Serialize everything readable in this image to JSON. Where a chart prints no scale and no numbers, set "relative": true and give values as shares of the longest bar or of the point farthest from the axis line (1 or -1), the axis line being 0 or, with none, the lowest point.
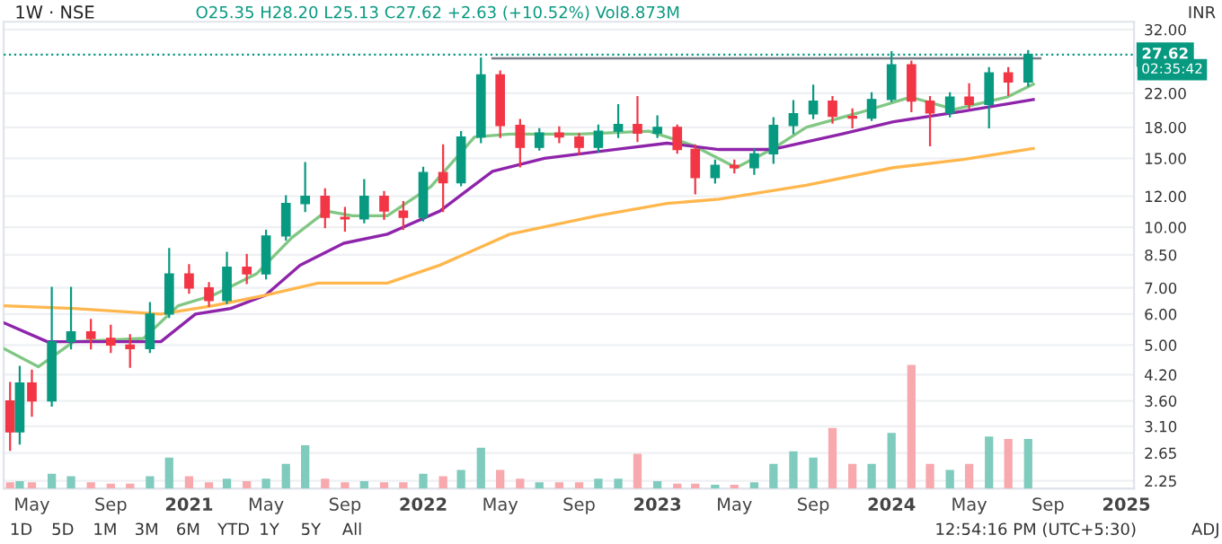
{
  "chart_data": [
    {
      "type": "candlestick",
      "title": "1W · NSE",
      "annotations": [
        "O25.35 H28.20 L25.13 C27.62 +2.63 (+10.52%) Vol8.873M",
        "INR",
        "02:35:42",
        "1D",
        "5D",
        "1M",
        "3M",
        "6M",
        "YTD",
        "1Y",
        "5Y",
        "All",
        "12:54:16 PM (UTC+5:30)",
        "ADJ"
      ],
      "x": [
        "2020-03-28",
        "2020-04-12",
        "2020-05",
        "2020-06",
        "2020-07",
        "2020-08",
        "2020-09",
        "2020-10",
        "2020-11",
        "2020-12",
        "2021-01",
        "2021-02",
        "2021-03",
        "2021-04",
        "2021-05",
        "2021-06",
        "2021-07",
        "2021-08",
        "2021-09",
        "2021-10",
        "2021-11",
        "2021-12",
        "2022-01",
        "2022-02",
        "2022-03",
        "2022-04",
        "2022-05",
        "2022-06",
        "2022-07",
        "2022-08",
        "2022-09",
        "2022-10",
        "2022-11",
        "2022-12",
        "2023-01",
        "2023-02",
        "2023-03",
        "2023-04",
        "2023-05",
        "2023-06",
        "2023-07",
        "2023-08",
        "2023-09",
        "2023-10",
        "2023-11",
        "2023-12",
        "2024-01",
        "2024-02",
        "2024-03",
        "2024-04",
        "2024-05",
        "2024-06",
        "2024-07",
        "2024-08"
      ],
      "ohlc": [
        [
          3.6,
          4.0,
          2.7,
          3.0
        ],
        [
          3.0,
          4.4,
          2.8,
          4.0
        ],
        [
          4.0,
          4.3,
          3.3,
          3.6
        ],
        [
          3.6,
          7.0,
          3.5,
          5.1
        ],
        [
          5.1,
          7.0,
          4.9,
          5.4
        ],
        [
          5.4,
          5.8,
          4.9,
          5.2
        ],
        [
          5.2,
          5.6,
          4.8,
          5.0
        ],
        [
          5.0,
          5.3,
          4.4,
          4.9
        ],
        [
          4.9,
          6.4,
          4.8,
          6.0
        ],
        [
          6.0,
          8.8,
          5.9,
          7.6
        ],
        [
          7.6,
          8.0,
          6.8,
          7.0
        ],
        [
          7.0,
          7.2,
          6.3,
          6.5
        ],
        [
          6.5,
          8.6,
          6.4,
          7.9
        ],
        [
          7.9,
          8.5,
          7.2,
          7.6
        ],
        [
          7.6,
          9.8,
          7.4,
          9.5
        ],
        [
          9.5,
          12.0,
          9.3,
          11.5
        ],
        [
          11.5,
          14.6,
          11.0,
          12.0
        ],
        [
          12.0,
          12.5,
          10.0,
          10.6
        ],
        [
          10.6,
          11.2,
          9.8,
          10.5
        ],
        [
          10.5,
          13.2,
          10.3,
          12.0
        ],
        [
          12.0,
          12.3,
          10.5,
          11.0
        ],
        [
          11.0,
          11.6,
          9.9,
          10.6
        ],
        [
          10.6,
          14.2,
          10.4,
          13.8
        ],
        [
          13.8,
          16.2,
          11.0,
          13.0
        ],
        [
          13.0,
          17.5,
          12.8,
          17.0
        ],
        [
          17.0,
          27.0,
          16.5,
          24.5
        ],
        [
          24.5,
          25.0,
          17.0,
          18.2
        ],
        [
          18.2,
          18.8,
          14.3,
          16.0
        ],
        [
          16.0,
          17.8,
          15.8,
          17.4
        ],
        [
          17.4,
          18.0,
          16.5,
          17.0
        ],
        [
          17.0,
          17.3,
          15.4,
          16.0
        ],
        [
          16.0,
          18.2,
          15.6,
          17.6
        ],
        [
          17.6,
          20.5,
          17.0,
          18.3
        ],
        [
          18.3,
          21.5,
          16.6,
          17.4
        ],
        [
          17.4,
          19.2,
          17.0,
          18.0
        ],
        [
          18.0,
          18.2,
          15.5,
          15.8
        ],
        [
          15.8,
          16.2,
          12.2,
          13.4
        ],
        [
          13.4,
          14.8,
          13.0,
          14.4
        ],
        [
          14.4,
          14.8,
          13.8,
          14.2
        ],
        [
          14.2,
          15.8,
          13.7,
          15.4
        ],
        [
          15.4,
          19.0,
          14.6,
          18.2
        ],
        [
          18.2,
          21.0,
          17.4,
          19.5
        ],
        [
          19.5,
          23.0,
          19.0,
          21.0
        ],
        [
          21.0,
          21.5,
          18.5,
          19.2
        ],
        [
          19.2,
          20.0,
          18.0,
          19.0
        ],
        [
          19.0,
          22.0,
          18.8,
          21.2
        ],
        [
          21.2,
          28.0,
          21.0,
          26.0
        ],
        [
          26.0,
          26.5,
          19.8,
          21.0
        ],
        [
          21.0,
          21.5,
          16.2,
          19.6
        ],
        [
          19.6,
          22.0,
          19.2,
          21.5
        ],
        [
          21.5,
          23.2,
          20.2,
          20.6
        ],
        [
          20.6,
          25.5,
          18.0,
          24.8
        ],
        [
          24.8,
          25.5,
          21.8,
          23.5
        ],
        [
          23.5,
          28.2,
          23.0,
          27.62
        ]
      ],
      "colors": [
        "#f23645",
        "#089981",
        "#f23645",
        "#089981",
        "#089981",
        "#f23645",
        "#f23645",
        "#f23645",
        "#089981",
        "#089981",
        "#f23645",
        "#f23645",
        "#089981",
        "#f23645",
        "#089981",
        "#089981",
        "#089981",
        "#f23645",
        "#f23645",
        "#089981",
        "#f23645",
        "#f23645",
        "#089981",
        "#f23645",
        "#089981",
        "#089981",
        "#f23645",
        "#f23645",
        "#089981",
        "#f23645",
        "#f23645",
        "#089981",
        "#089981",
        "#f23645",
        "#089981",
        "#f23645",
        "#f23645",
        "#089981",
        "#f23645",
        "#089981",
        "#089981",
        "#089981",
        "#089981",
        "#f23645",
        "#f23645",
        "#089981",
        "#089981",
        "#f23645",
        "#f23645",
        "#089981",
        "#f23645",
        "#089981",
        "#f23645",
        "#089981"
      ],
      "series": [
        {
          "type": "line",
          "color": "#81c784",
          "x": [
            "2020-03-18",
            "2020-05-11",
            "2020-07-05",
            "2020-10-22",
            "2020-12-15",
            "2021-02-07",
            "2021-04-16",
            "2021-06-10",
            "2021-08-03",
            "2021-09-13",
            "2021-11-06",
            "2022-01-13",
            "2022-03-22",
            "2022-05-16",
            "2022-09-02",
            "2022-12-19",
            "2023-02-25",
            "2023-05-04",
            "2023-06-28",
            "2023-08-21",
            "2023-11-11",
            "2024-01-31",
            "2024-04-08",
            "2024-06-29",
            "2024-08-09"
          ],
          "values": [
            4.9,
            4.4,
            5.1,
            5.2,
            6.3,
            6.7,
            7.6,
            9.4,
            11.0,
            10.7,
            10.7,
            12.7,
            17.0,
            17.3,
            17.3,
            17.6,
            16.2,
            14.2,
            15.8,
            18.0,
            19.6,
            21.5,
            20.0,
            21.5,
            23.2
          ]
        },
        {
          "type": "line",
          "color": "#8e24aa",
          "x": [
            "2020-03-18",
            "2020-05-25",
            "2020-07-05",
            "2020-11-18",
            "2021-01-11",
            "2021-03-07",
            "2021-04-30",
            "2021-06-23",
            "2021-08-30",
            "2021-11-06",
            "2022-01-27",
            "2022-04-19",
            "2022-07-09",
            "2022-10-26",
            "2023-01-16",
            "2023-04-07",
            "2023-06-28",
            "2023-10-15",
            "2024-01-04",
            "2024-04-22",
            "2024-08-09"
          ],
          "values": [
            5.7,
            5.1,
            5.1,
            5.1,
            6.0,
            6.2,
            6.7,
            8.0,
            9.1,
            9.6,
            11.0,
            13.9,
            15.0,
            15.8,
            16.4,
            15.8,
            15.8,
            17.3,
            18.6,
            19.8,
            21.2
          ]
        },
        {
          "type": "line",
          "color": "#ffb74d",
          "x": [
            "2020-03-18",
            "2020-07-05",
            "2020-11-18",
            "2021-02-07",
            "2021-04-30",
            "2021-07-21",
            "2021-11-06",
            "2022-01-27",
            "2022-05-16",
            "2022-09-29",
            "2023-01-16",
            "2023-04-07",
            "2023-08-21",
            "2024-01-04",
            "2024-04-22",
            "2024-08-09"
          ],
          "values": [
            6.3,
            6.2,
            6.0,
            6.3,
            6.7,
            7.2,
            7.2,
            8.0,
            9.6,
            10.7,
            11.5,
            11.8,
            12.8,
            14.2,
            14.9,
            15.9
          ]
        },
        {
          "type": "line",
          "color": "#787b86",
          "x": [
            "2022-04-19",
            "2024-08-20"
          ],
          "values": [
            27.0,
            27.0
          ]
        }
      ],
      "ref_lines": [
        {
          "axis": "y",
          "value": 27.62,
          "label": "27.62",
          "color": "#089981",
          "line_style": "dotted"
        }
      ],
      "log": "y",
      "xlim": [
        "2020-03-18",
        "2025-01-13"
      ],
      "ylim": [
        2.15,
        33.5
      ],
      "yticks": [
        2.25,
        2.65,
        {
          "value": 3.1,
          "label": "3.10"
        },
        {
          "value": 3.6,
          "label": "3.60"
        },
        {
          "value": 4.2,
          "label": "4.20"
        },
        {
          "value": 5,
          "label": "5.00"
        },
        {
          "value": 6,
          "label": "6.00"
        },
        {
          "value": 7,
          "label": "7.00"
        },
        {
          "value": 8.5,
          "label": "8.50"
        },
        {
          "value": 10,
          "label": "10.00"
        },
        {
          "value": 12,
          "label": "12.00"
        },
        {
          "value": 15,
          "label": "15.00"
        },
        {
          "value": 18,
          "label": "18.00"
        },
        {
          "value": 22,
          "label": "22.00"
        },
        {
          "value": 32,
          "label": "32.00"
        }
      ],
      "grid": true,
      "tick_labels": "y"
    },
    {
      "type": "bar",
      "relative": true,
      "x": [
        "2020-03-28",
        "2020-04-12",
        "2020-05",
        "2020-06",
        "2020-07",
        "2020-08",
        "2020-09",
        "2020-10",
        "2020-11",
        "2020-12",
        "2021-01",
        "2021-02",
        "2021-03",
        "2021-04",
        "2021-05",
        "2021-06",
        "2021-07",
        "2021-08",
        "2021-09",
        "2021-10",
        "2021-11",
        "2021-12",
        "2022-01",
        "2022-02",
        "2022-03",
        "2022-04",
        "2022-05",
        "2022-06",
        "2022-07",
        "2022-08",
        "2022-09",
        "2022-10",
        "2022-11",
        "2022-12",
        "2023-01",
        "2023-02",
        "2023-03",
        "2023-04",
        "2023-05",
        "2023-06",
        "2023-07",
        "2023-08",
        "2023-09",
        "2023-10",
        "2023-11",
        "2023-12",
        "2024-01",
        "2024-02",
        "2024-03",
        "2024-04",
        "2024-05",
        "2024-06",
        "2024-07",
        "2024-08"
      ],
      "values": [
        0.05,
        0.06,
        0.05,
        0.12,
        0.1,
        0.05,
        0.04,
        0.04,
        0.1,
        0.25,
        0.1,
        0.05,
        0.08,
        0.06,
        0.08,
        0.2,
        0.35,
        0.08,
        0.05,
        0.06,
        0.05,
        0.05,
        0.12,
        0.1,
        0.15,
        0.33,
        0.15,
        0.08,
        0.05,
        0.05,
        0.05,
        0.08,
        0.08,
        0.28,
        0.06,
        0.04,
        0.04,
        0.03,
        0.03,
        0.05,
        0.2,
        0.3,
        0.25,
        0.49,
        0.2,
        0.2,
        0.45,
        1.0,
        0.2,
        0.15,
        0.2,
        0.42,
        0.4,
        0.4
      ],
      "colors": [
        "#f7a9ae",
        "#7fcbbd",
        "#f7a9ae",
        "#7fcbbd",
        "#7fcbbd",
        "#f7a9ae",
        "#f7a9ae",
        "#f7a9ae",
        "#7fcbbd",
        "#7fcbbd",
        "#f7a9ae",
        "#f7a9ae",
        "#7fcbbd",
        "#f7a9ae",
        "#7fcbbd",
        "#7fcbbd",
        "#7fcbbd",
        "#f7a9ae",
        "#f7a9ae",
        "#7fcbbd",
        "#f7a9ae",
        "#f7a9ae",
        "#7fcbbd",
        "#f7a9ae",
        "#7fcbbd",
        "#7fcbbd",
        "#f7a9ae",
        "#f7a9ae",
        "#7fcbbd",
        "#f7a9ae",
        "#f7a9ae",
        "#7fcbbd",
        "#7fcbbd",
        "#f7a9ae",
        "#7fcbbd",
        "#f7a9ae",
        "#f7a9ae",
        "#7fcbbd",
        "#f7a9ae",
        "#7fcbbd",
        "#7fcbbd",
        "#7fcbbd",
        "#7fcbbd",
        "#f7a9ae",
        "#f7a9ae",
        "#7fcbbd",
        "#7fcbbd",
        "#f7a9ae",
        "#f7a9ae",
        "#7fcbbd",
        "#f7a9ae",
        "#7fcbbd",
        "#f7a9ae",
        "#7fcbbd"
      ],
      "xlim": [
        "2020-03-18",
        "2025-01-13"
      ],
      "xticks": [
        {
          "value": "2020-05-01",
          "label": "May"
        },
        {
          "value": "2020-09-01",
          "label": "Sep"
        },
        {
          "value": "2021-01-01",
          "label": "2021"
        },
        {
          "value": "2021-05-01",
          "label": "May"
        },
        {
          "value": "2021-09-01",
          "label": "Sep"
        },
        {
          "value": "2022-01-01",
          "label": "2022"
        },
        {
          "value": "2022-05-01",
          "label": "May"
        },
        {
          "value": "2022-09-01",
          "label": "Sep"
        },
        {
          "value": "2023-01-01",
          "label": "2023"
        },
        {
          "value": "2023-05-01",
          "label": "May"
        },
        {
          "value": "2023-09-01",
          "label": "Sep"
        },
        {
          "value": "2024-01-01",
          "label": "2024"
        },
        {
          "value": "2024-05-01",
          "label": "May"
        },
        {
          "value": "2024-09-01",
          "label": "Sep"
        },
        {
          "value": "2025-01-01",
          "label": "2025"
        }
      ],
      "tick_labels": "x"
    }
  ]
}
